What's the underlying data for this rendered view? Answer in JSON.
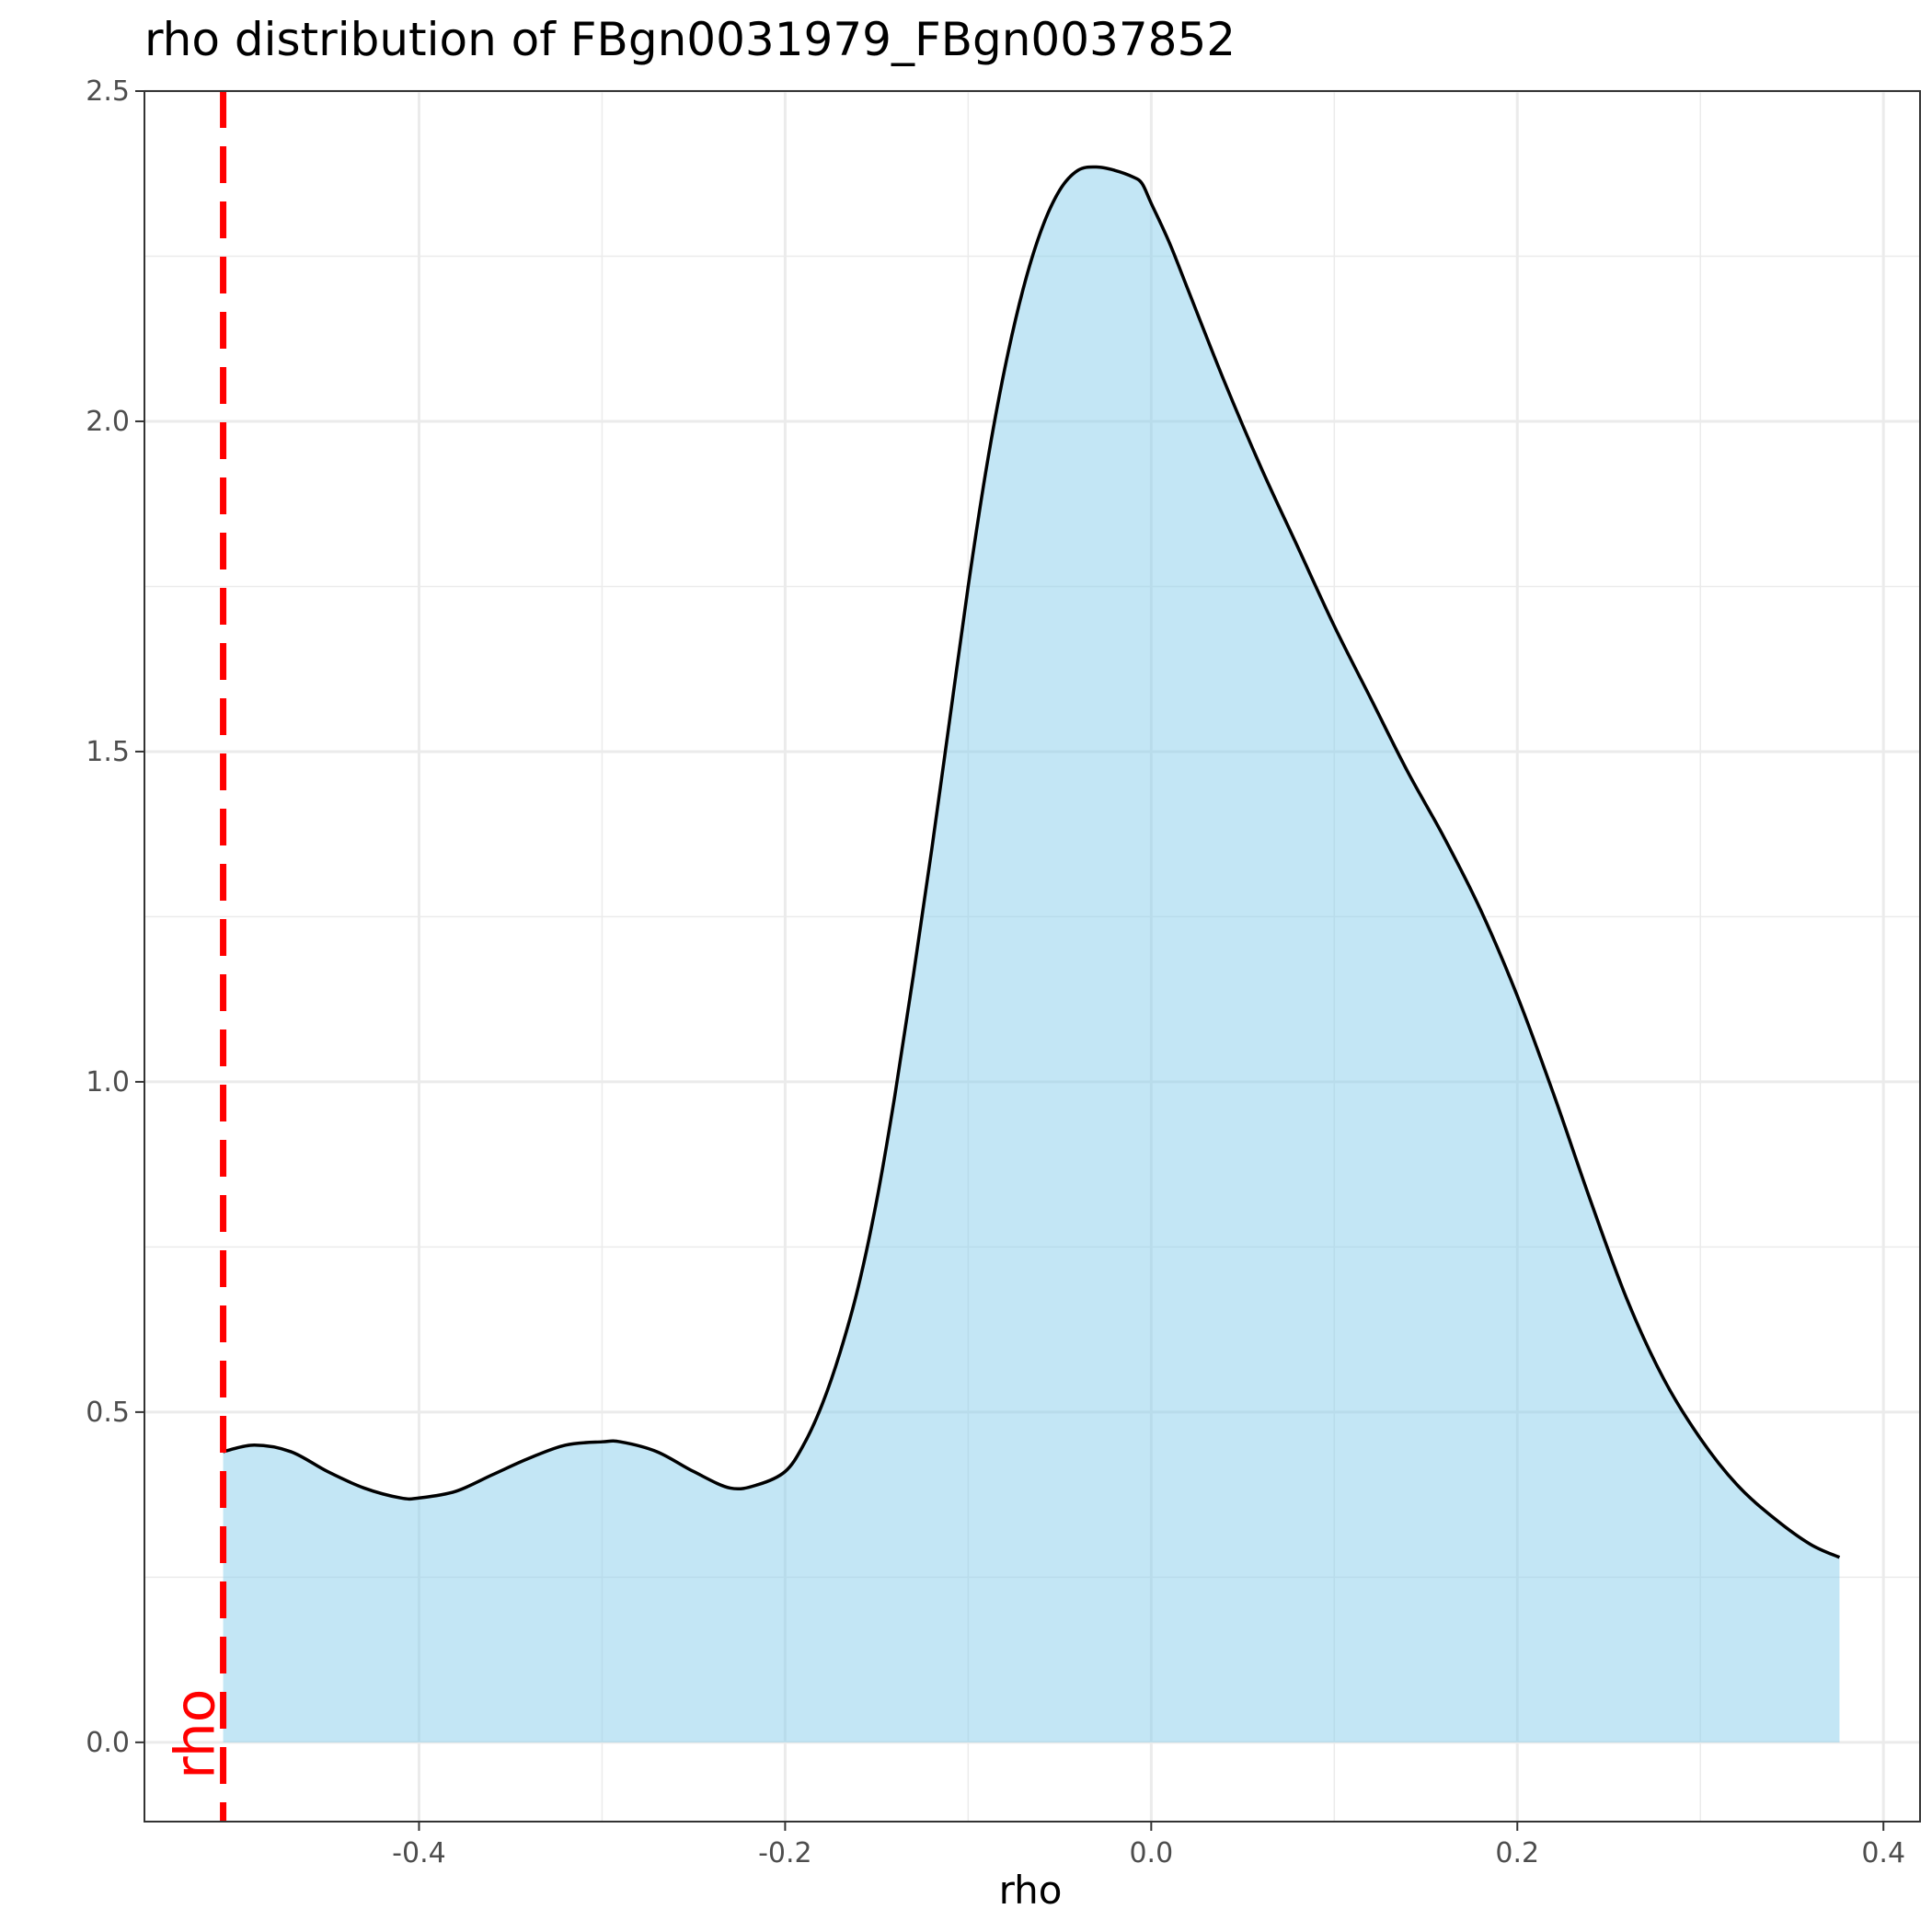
{
  "chart_data": {
    "type": "area",
    "title": "rho distribution of FBgn0031979_FBgn0037852",
    "xlabel": "rho",
    "ylabel": "",
    "xlim": [
      -0.55,
      0.42
    ],
    "ylim": [
      -0.12,
      2.5
    ],
    "x_ticks": [
      -0.4,
      -0.2,
      0.0,
      0.2,
      0.4
    ],
    "x_tick_labels": [
      "-0.4",
      "-0.2",
      "0.0",
      "0.2",
      "0.4"
    ],
    "y_ticks": [
      0.0,
      0.5,
      1.0,
      1.5,
      2.0,
      2.5
    ],
    "y_tick_labels": [
      "0.0",
      "0.5",
      "1.0",
      "1.5",
      "2.0",
      "2.5"
    ],
    "grid": true,
    "fill_color": "#87CEEB",
    "line_color": "#000000",
    "density": {
      "x": [
        -0.507,
        -0.49,
        -0.47,
        -0.45,
        -0.43,
        -0.41,
        -0.4,
        -0.38,
        -0.36,
        -0.34,
        -0.32,
        -0.3,
        -0.29,
        -0.27,
        -0.25,
        -0.23,
        -0.215,
        -0.2,
        -0.19,
        -0.18,
        -0.17,
        -0.16,
        -0.15,
        -0.14,
        -0.13,
        -0.12,
        -0.11,
        -0.1,
        -0.09,
        -0.08,
        -0.07,
        -0.06,
        -0.05,
        -0.04,
        -0.03,
        -0.02,
        -0.01,
        -0.005,
        0.0,
        0.01,
        0.02,
        0.04,
        0.06,
        0.08,
        0.1,
        0.12,
        0.14,
        0.16,
        0.18,
        0.2,
        0.22,
        0.24,
        0.26,
        0.28,
        0.3,
        0.32,
        0.34,
        0.36,
        0.376
      ],
      "y": [
        0.44,
        0.45,
        0.44,
        0.41,
        0.385,
        0.37,
        0.37,
        0.38,
        0.405,
        0.43,
        0.45,
        0.455,
        0.455,
        0.44,
        0.41,
        0.385,
        0.39,
        0.41,
        0.45,
        0.51,
        0.59,
        0.69,
        0.82,
        0.98,
        1.16,
        1.35,
        1.55,
        1.75,
        1.93,
        2.08,
        2.2,
        2.29,
        2.35,
        2.38,
        2.385,
        2.38,
        2.37,
        2.36,
        2.33,
        2.27,
        2.2,
        2.06,
        1.93,
        1.81,
        1.69,
        1.58,
        1.47,
        1.37,
        1.26,
        1.13,
        0.98,
        0.82,
        0.67,
        0.55,
        0.46,
        0.39,
        0.34,
        0.3,
        0.28
      ]
    },
    "vline": {
      "x": -0.507,
      "style": "dashed",
      "color": "#FF0000"
    },
    "annotations": [
      {
        "text": "rho",
        "x": -0.507,
        "y": 0.0,
        "color": "#FF0000",
        "rotation": 90
      }
    ]
  }
}
